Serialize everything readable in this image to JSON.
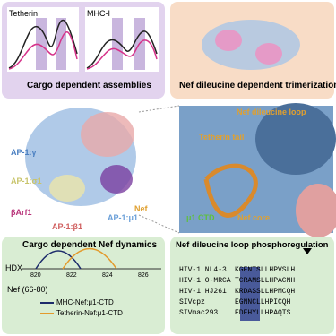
{
  "panels": {
    "top_left": {
      "plots": [
        "Tetherin",
        "MHC-I"
      ],
      "caption": "Cargo dependent assemblies"
    },
    "top_right": {
      "caption": "Nef dileucine dependent trimerization"
    },
    "center": {
      "labels": [
        "AP-1:γ",
        "AP-1:σ1",
        "βArf1",
        "AP-1:β1",
        "AP-1:μ1",
        "Nef"
      ]
    },
    "zoom": {
      "labels": [
        "Nef dileucine loop",
        "Tetherin tail",
        "Nef core",
        "μ1 CTD"
      ]
    },
    "bottom_left": {
      "title": "Cargo dependent Nef dynamics",
      "axis_label": "HDX",
      "ticks": [
        "820",
        "822",
        "824",
        "826"
      ],
      "peptide": "Nef (66-80)",
      "legend": [
        "MHC-Nef:μ1-CTD",
        "Tetherin-Nef:μ1-CTD"
      ]
    },
    "bottom_right": {
      "title": "Nef dileucine loop phosphoregulation",
      "rows": [
        [
          "HIV-1 NL4-3",
          "KGENTSLLHPVSLH"
        ],
        [
          "HIV-1 O-MRCA",
          "TCRAMSLLHPACNH"
        ],
        [
          "HIV-1 HJ261",
          "KRDASSLLHPMCQH"
        ],
        [
          "SIVcpz",
          "EGNNCLLHPICQH"
        ],
        [
          "SIVmac293",
          "EDEHYLLHPAQTS"
        ]
      ]
    }
  }
}
